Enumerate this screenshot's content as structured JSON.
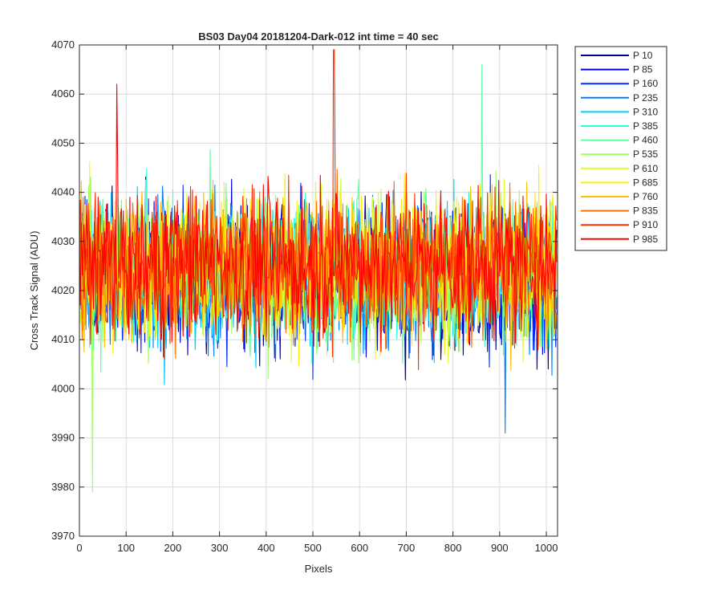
{
  "chart_data": {
    "type": "line",
    "title": "BS03 Day04 20181204-Dark-012 int time = 40 sec",
    "xlabel": "Pixels",
    "ylabel": "Cross Track Signal (ADU)",
    "xlim": [
      0,
      1024
    ],
    "ylim": [
      3970,
      4070
    ],
    "xticks": [
      0,
      100,
      200,
      300,
      400,
      500,
      600,
      700,
      800,
      900,
      1000
    ],
    "yticks": [
      3970,
      3980,
      3990,
      4000,
      4010,
      4020,
      4030,
      4040,
      4050,
      4060,
      4070
    ],
    "grid": true,
    "legend_location": "outside top-right",
    "series_summary": {
      "center_value": 4024,
      "typical_range": [
        4005,
        4045
      ],
      "extremes": [
        {
          "series": "P 910",
          "x": 545,
          "y": 4069
        },
        {
          "series": "P 985",
          "x": 80,
          "y": 4062
        },
        {
          "series": "P 460",
          "x": 862,
          "y": 4066
        },
        {
          "series": "P 535",
          "x": 28,
          "y": 3979
        },
        {
          "series": "P 235",
          "x": 912,
          "y": 3991
        }
      ]
    },
    "series": [
      {
        "name": "P 10",
        "color": "#00008f"
      },
      {
        "name": "P 85",
        "color": "#0000df"
      },
      {
        "name": "P 160",
        "color": "#0030ff"
      },
      {
        "name": "P 235",
        "color": "#0080ff"
      },
      {
        "name": "P 310",
        "color": "#00cfff"
      },
      {
        "name": "P 385",
        "color": "#20ffdf"
      },
      {
        "name": "P 460",
        "color": "#60ffa0"
      },
      {
        "name": "P 535",
        "color": "#9fff60"
      },
      {
        "name": "P 610",
        "color": "#dfff20"
      },
      {
        "name": "P 685",
        "color": "#ffef00"
      },
      {
        "name": "P 760",
        "color": "#ffbf00"
      },
      {
        "name": "P 835",
        "color": "#ff7000"
      },
      {
        "name": "P 910",
        "color": "#ff3000"
      },
      {
        "name": "P 985",
        "color": "#ff0000"
      }
    ]
  }
}
